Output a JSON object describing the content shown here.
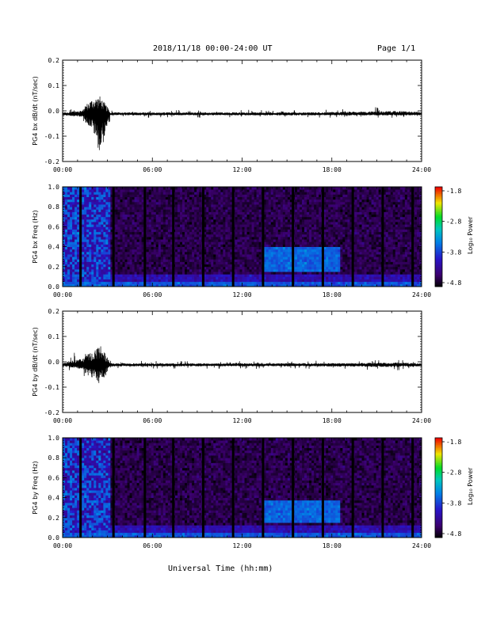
{
  "header": {
    "title": "2018/11/18  00:00-24:00 UT",
    "page": "Page 1/1"
  },
  "footer": {
    "xlabel": "Universal Time (hh:mm)"
  },
  "chart_data": [
    {
      "type": "line",
      "ylabel": "PG4 bx dB/dt (nT/sec)",
      "xlim": [
        0,
        24
      ],
      "ylim": [
        -0.2,
        0.2
      ],
      "x_ticks": [
        "00:00",
        "06:00",
        "12:00",
        "18:00",
        "24:00"
      ],
      "y_ticks": [
        "0.2",
        "0.1",
        "0.0",
        "-0.1",
        "-0.2"
      ],
      "series": [
        {
          "description_source": "dB/dt waveform",
          "envelope": [
            {
              "t": 0.0,
              "max": 0.01,
              "min": -0.01
            },
            {
              "t": 1.2,
              "max": 0.02,
              "min": -0.02
            },
            {
              "t": 2.0,
              "max": 0.06,
              "min": -0.06
            },
            {
              "t": 2.5,
              "max": 0.07,
              "min": -0.16
            },
            {
              "t": 3.2,
              "max": 0.01,
              "min": -0.01
            },
            {
              "t": 8.5,
              "max": 0.01,
              "min": -0.01
            },
            {
              "t": 9.5,
              "max": 0.01,
              "min": -0.01
            },
            {
              "t": 16.5,
              "max": 0.01,
              "min": -0.01
            },
            {
              "t": 22.6,
              "max": 0.02,
              "min": -0.01
            },
            {
              "t": 24.0,
              "max": 0.01,
              "min": -0.01
            }
          ]
        }
      ]
    },
    {
      "type": "heatmap",
      "ylabel": "PG4 bx Freq (Hz)",
      "xlim": [
        0,
        24
      ],
      "ylim": [
        0.0,
        1.0
      ],
      "x_ticks": [
        "00:00",
        "06:00",
        "12:00",
        "18:00",
        "24:00"
      ],
      "y_ticks": [
        "1.0",
        "0.8",
        "0.6",
        "0.4",
        "0.2",
        "0.0"
      ],
      "colorbar": {
        "label": "Log₁₀ Power",
        "ticks": [
          "-1.8",
          "-2.8",
          "-3.8",
          "-4.8"
        ],
        "range": [
          -4.8,
          -1.8
        ]
      },
      "gaps_hours": [
        1.2,
        3.4,
        5.5,
        7.4,
        9.4,
        11.4,
        13.4,
        15.4,
        17.4,
        19.4,
        21.4,
        23.4
      ],
      "features": [
        {
          "t0": 0.0,
          "t1": 3.2,
          "f0": 0.0,
          "f1": 1.0,
          "level": -3.6
        },
        {
          "t0": 13.5,
          "t1": 18.5,
          "f0": 0.15,
          "f1": 0.4,
          "level": -3.2
        }
      ]
    },
    {
      "type": "line",
      "ylabel": "PG4 by dB/dt (nT/sec)",
      "xlim": [
        0,
        24
      ],
      "ylim": [
        -0.2,
        0.2
      ],
      "x_ticks": [
        "00:00",
        "06:00",
        "12:00",
        "18:00",
        "24:00"
      ],
      "y_ticks": [
        "0.2",
        "0.1",
        "0.0",
        "-0.1",
        "-0.2"
      ],
      "series": [
        {
          "description_source": "dB/dt waveform",
          "envelope": [
            {
              "t": 0.0,
              "max": 0.01,
              "min": -0.01
            },
            {
              "t": 0.6,
              "max": 0.03,
              "min": -0.02
            },
            {
              "t": 2.0,
              "max": 0.05,
              "min": -0.05
            },
            {
              "t": 2.5,
              "max": 0.08,
              "min": -0.08
            },
            {
              "t": 3.2,
              "max": 0.01,
              "min": -0.01
            },
            {
              "t": 16.5,
              "max": 0.01,
              "min": -0.01
            },
            {
              "t": 22.6,
              "max": 0.015,
              "min": -0.015
            },
            {
              "t": 24.0,
              "max": 0.01,
              "min": -0.01
            }
          ]
        }
      ]
    },
    {
      "type": "heatmap",
      "ylabel": "PG4 by Freq (Hz)",
      "xlim": [
        0,
        24
      ],
      "ylim": [
        0.0,
        1.0
      ],
      "x_ticks": [
        "00:00",
        "06:00",
        "12:00",
        "18:00",
        "24:00"
      ],
      "y_ticks": [
        "1.0",
        "0.8",
        "0.6",
        "0.4",
        "0.2",
        "0.0"
      ],
      "colorbar": {
        "label": "Log₁₀ Power",
        "ticks": [
          "-1.8",
          "-2.8",
          "-3.8",
          "-4.8"
        ],
        "range": [
          -4.8,
          -1.8
        ]
      },
      "gaps_hours": [
        1.2,
        3.4,
        5.5,
        7.4,
        9.4,
        11.4,
        13.4,
        15.4,
        17.4,
        19.4,
        21.4,
        23.4
      ],
      "features": [
        {
          "t0": 0.0,
          "t1": 3.2,
          "f0": 0.0,
          "f1": 1.0,
          "level": -3.6
        },
        {
          "t0": 13.5,
          "t1": 18.5,
          "f0": 0.15,
          "f1": 0.38,
          "level": -3.2
        }
      ]
    }
  ]
}
